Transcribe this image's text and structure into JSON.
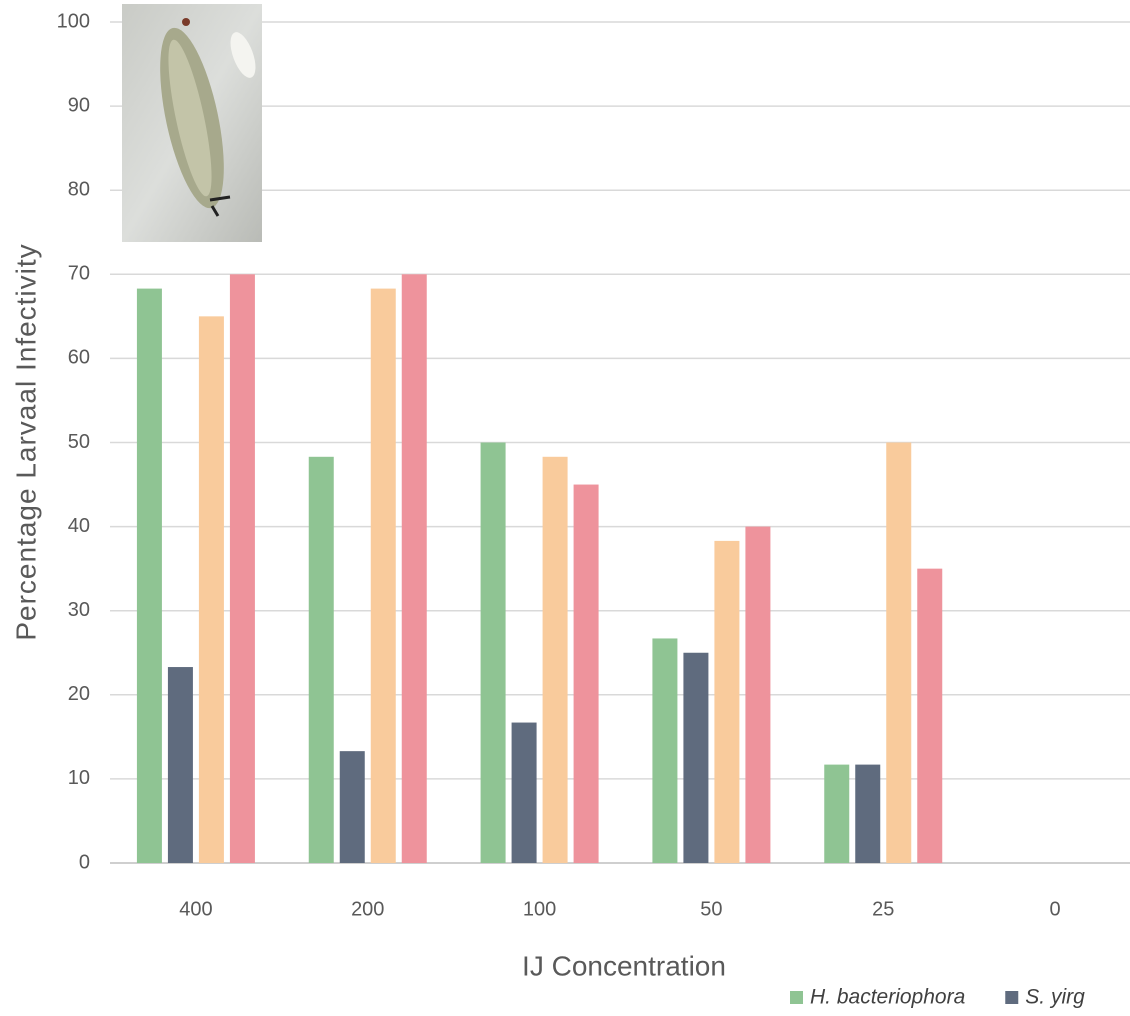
{
  "chart_data": {
    "type": "bar",
    "x_label": "IJ Concentration",
    "y_label": "Percentage Larvaal Infectivity",
    "categories": [
      "400",
      "200",
      "100",
      "50",
      "25",
      "0"
    ],
    "series": [
      {
        "name": "H. bacteriophora",
        "color": "#8fc493",
        "values": [
          68.3,
          48.3,
          50,
          26.7,
          11.7,
          0
        ]
      },
      {
        "name": "S. yirg",
        "color": "#5f6b7e",
        "values": [
          23.3,
          13.3,
          16.7,
          25,
          11.7,
          0
        ]
      },
      {
        "color": "#f9cb9c",
        "values": [
          65,
          68.3,
          48.3,
          38.3,
          50,
          0
        ]
      },
      {
        "color": "#ee939c",
        "values": [
          70,
          70,
          45,
          40,
          35,
          0
        ]
      }
    ],
    "ylim": [
      0,
      100
    ],
    "yticks": [
      0,
      10,
      20,
      30,
      40,
      50,
      60,
      70,
      80,
      90,
      100
    ],
    "grid": true
  }
}
